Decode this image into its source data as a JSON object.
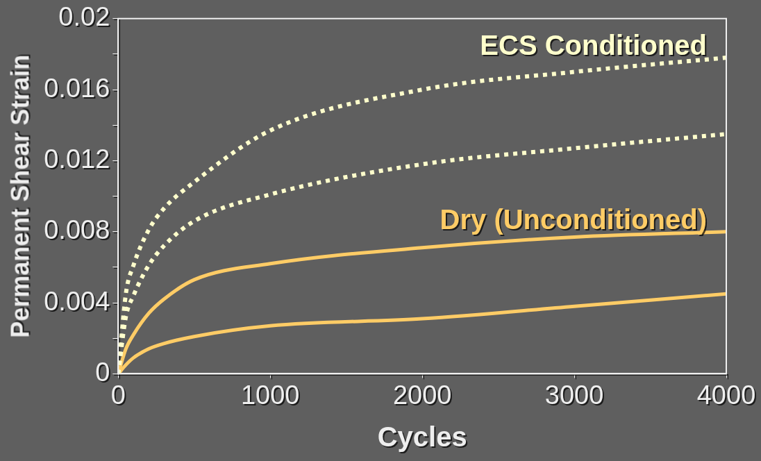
{
  "chart_data": {
    "type": "line",
    "xlabel": "Cycles",
    "ylabel": "Permanent Shear Strain",
    "xlim": [
      0,
      4000
    ],
    "xticks": [
      0,
      1000,
      2000,
      3000,
      4000
    ],
    "ylim": [
      0,
      0.02
    ],
    "yticks": [
      0,
      {
        "value": 0.002,
        "label": null
      },
      0.004,
      {
        "value": 0.006,
        "label": null
      },
      0.008,
      {
        "value": 0.01,
        "label": null
      },
      0.012,
      {
        "value": 0.014,
        "label": null
      },
      0.016,
      {
        "value": 0.018,
        "label": null
      },
      0.02
    ],
    "grid": false,
    "legend": false,
    "marker": "none",
    "x": [
      0,
      50,
      100,
      200,
      300,
      500,
      1000,
      2000,
      3000,
      4000
    ],
    "series": [
      {
        "name": "ECS Conditioned",
        "color": "#ffffcc",
        "line_style": "dotted",
        "values": [
          0,
          0.0045,
          0.0061,
          0.0081,
          0.0093,
          0.0108,
          0.0137,
          0.016,
          0.017,
          0.0178
        ]
      },
      {
        "color": "#ffffcc",
        "line_style": "dotted",
        "values": [
          0,
          0.0032,
          0.0044,
          0.0061,
          0.0072,
          0.0086,
          0.0101,
          0.0118,
          0.0127,
          0.0135
        ]
      },
      {
        "name": "Dry (Unconditioned)",
        "color": "#ffcc66",
        "line_style": "solid",
        "values": [
          0,
          0.0014,
          0.0022,
          0.0034,
          0.0042,
          0.0053,
          0.0062,
          0.0071,
          0.0077,
          0.008
        ]
      },
      {
        "color": "#ffcc66",
        "line_style": "solid",
        "values": [
          0,
          0.0005,
          0.0009,
          0.0014,
          0.0017,
          0.0021,
          0.0027,
          0.0031,
          0.0038,
          0.0045
        ]
      }
    ]
  }
}
